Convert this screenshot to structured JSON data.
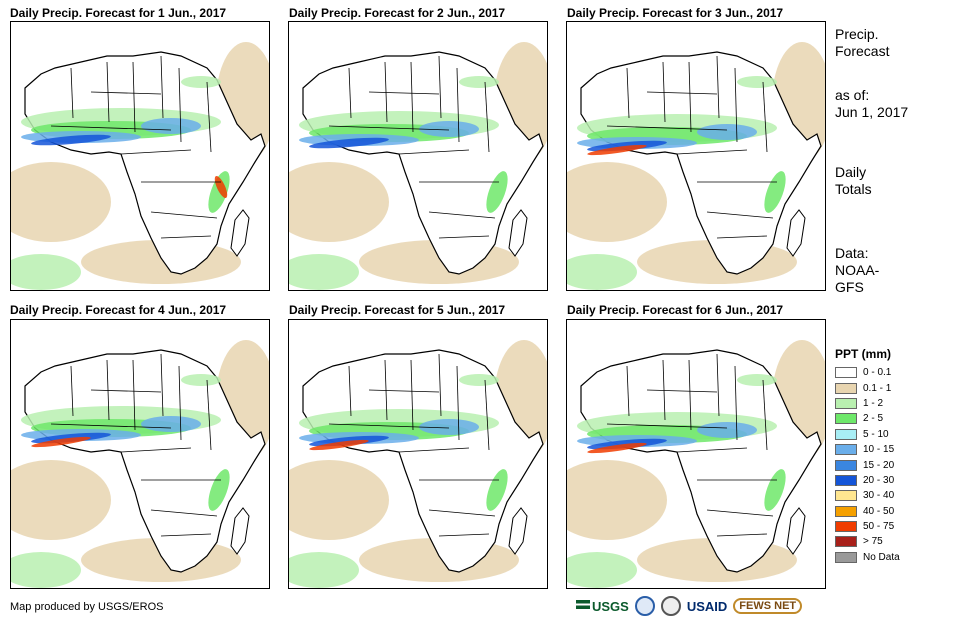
{
  "panels": [
    {
      "title": "Daily Precip. Forecast for 1 Jun., 2017"
    },
    {
      "title": "Daily Precip. Forecast for 2 Jun., 2017"
    },
    {
      "title": "Daily Precip. Forecast for 3 Jun., 2017"
    },
    {
      "title": "Daily Precip. Forecast for 4 Jun., 2017"
    },
    {
      "title": "Daily Precip. Forecast for 5 Jun., 2017"
    },
    {
      "title": "Daily Precip. Forecast for 6 Jun., 2017"
    }
  ],
  "sidebar": {
    "heading_line1": "Precip.",
    "heading_line2": "Forecast",
    "asof_label": "as of:",
    "asof_date": "Jun 1, 2017",
    "totals_line1": "Daily",
    "totals_line2": "Totals",
    "data_label": "Data:",
    "data_line1": "NOAA-",
    "data_line2": "GFS"
  },
  "legend": {
    "title": "PPT (mm)",
    "items": [
      {
        "label": "0 - 0.1",
        "color": "#ffffff"
      },
      {
        "label": "0.1 - 1",
        "color": "#e8d5b0"
      },
      {
        "label": "1 - 2",
        "color": "#b9f0b0"
      },
      {
        "label": "2 - 5",
        "color": "#6ee86a"
      },
      {
        "label": "5 - 10",
        "color": "#a8eef5"
      },
      {
        "label": "10 - 15",
        "color": "#6aaeea"
      },
      {
        "label": "15 - 20",
        "color": "#3a86e0"
      },
      {
        "label": "20 - 30",
        "color": "#1455d8"
      },
      {
        "label": "30 - 40",
        "color": "#ffe690"
      },
      {
        "label": "40 - 50",
        "color": "#f5a000"
      },
      {
        "label": "50 - 75",
        "color": "#f03c00"
      },
      {
        "label": "> 75",
        "color": "#a8201a"
      },
      {
        "label": "No Data",
        "color": "#999999"
      }
    ]
  },
  "footer": {
    "credit": "Map produced by USGS/EROS"
  },
  "logos": {
    "usgs": "USGS",
    "usaid": "USAID",
    "fews": "FEWS NET"
  }
}
